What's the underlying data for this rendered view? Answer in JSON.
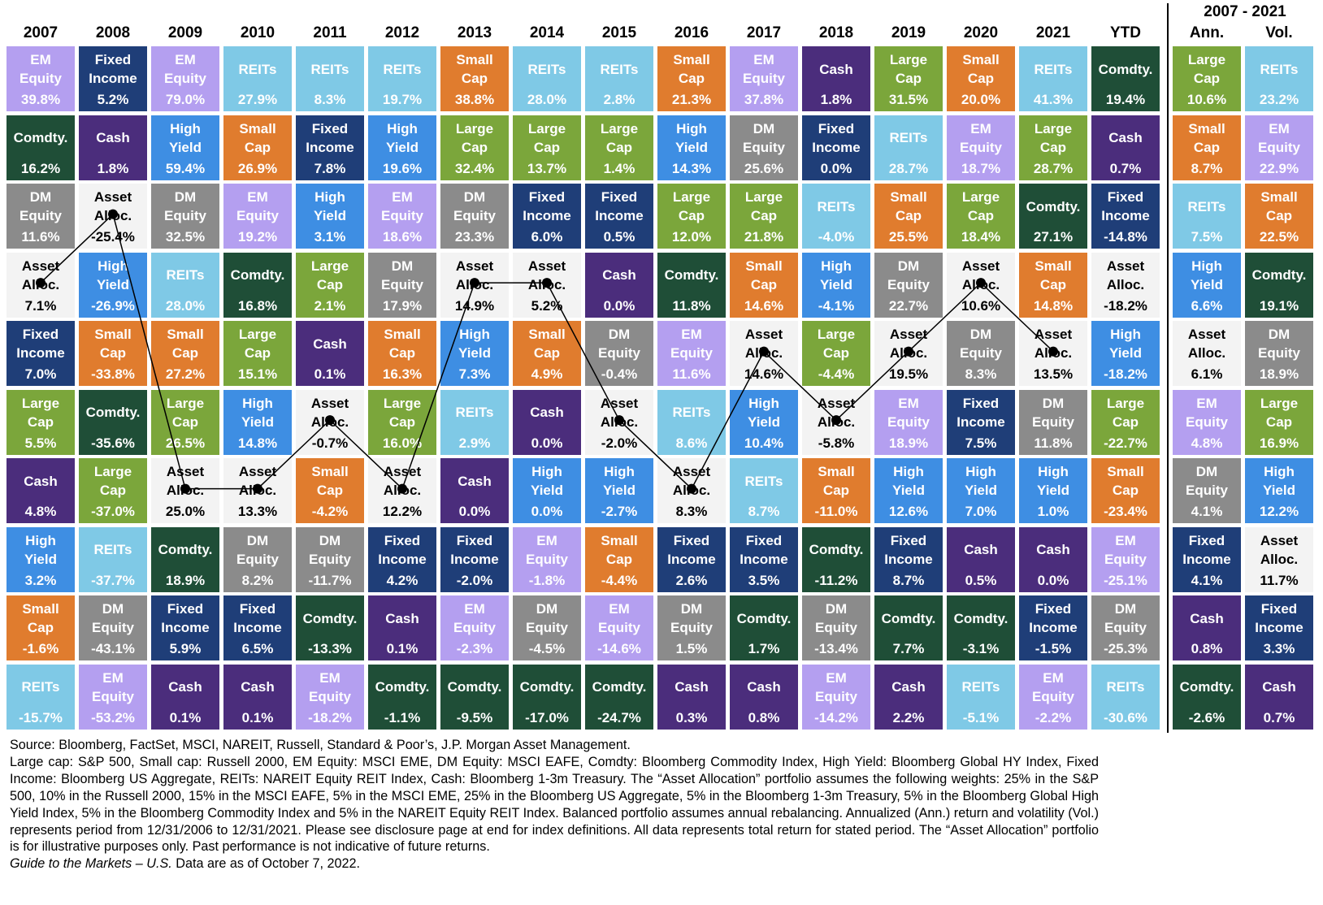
{
  "years": [
    {
      "header": "2007",
      "cells": [
        [
          "EM Equity",
          "39.8%"
        ],
        [
          "Comdty.",
          "16.2%"
        ],
        [
          "DM Equity",
          "11.6%"
        ],
        [
          "Asset Alloc.",
          "7.1%"
        ],
        [
          "Fixed Income",
          "7.0%"
        ],
        [
          "Large Cap",
          "5.5%"
        ],
        [
          "Cash",
          "4.8%"
        ],
        [
          "High Yield",
          "3.2%"
        ],
        [
          "Small Cap",
          "-1.6%"
        ],
        [
          "REITs",
          "-15.7%"
        ]
      ]
    },
    {
      "header": "2008",
      "cells": [
        [
          "Fixed Income",
          "5.2%"
        ],
        [
          "Cash",
          "1.8%"
        ],
        [
          "Asset Alloc.",
          "-25.4%"
        ],
        [
          "High Yield",
          "-26.9%"
        ],
        [
          "Small Cap",
          "-33.8%"
        ],
        [
          "Comdty.",
          "-35.6%"
        ],
        [
          "Large Cap",
          "-37.0%"
        ],
        [
          "REITs",
          "-37.7%"
        ],
        [
          "DM Equity",
          "-43.1%"
        ],
        [
          "EM Equity",
          "-53.2%"
        ]
      ]
    },
    {
      "header": "2009",
      "cells": [
        [
          "EM Equity",
          "79.0%"
        ],
        [
          "High Yield",
          "59.4%"
        ],
        [
          "DM Equity",
          "32.5%"
        ],
        [
          "REITs",
          "28.0%"
        ],
        [
          "Small Cap",
          "27.2%"
        ],
        [
          "Large Cap",
          "26.5%"
        ],
        [
          "Asset Alloc.",
          "25.0%"
        ],
        [
          "Comdty.",
          "18.9%"
        ],
        [
          "Fixed Income",
          "5.9%"
        ],
        [
          "Cash",
          "0.1%"
        ]
      ]
    },
    {
      "header": "2010",
      "cells": [
        [
          "REITs",
          "27.9%"
        ],
        [
          "Small Cap",
          "26.9%"
        ],
        [
          "EM Equity",
          "19.2%"
        ],
        [
          "Comdty.",
          "16.8%"
        ],
        [
          "Large Cap",
          "15.1%"
        ],
        [
          "High Yield",
          "14.8%"
        ],
        [
          "Asset Alloc.",
          "13.3%"
        ],
        [
          "DM Equity",
          "8.2%"
        ],
        [
          "Fixed Income",
          "6.5%"
        ],
        [
          "Cash",
          "0.1%"
        ]
      ]
    },
    {
      "header": "2011",
      "cells": [
        [
          "REITs",
          "8.3%"
        ],
        [
          "Fixed Income",
          "7.8%"
        ],
        [
          "High Yield",
          "3.1%"
        ],
        [
          "Large Cap",
          "2.1%"
        ],
        [
          "Cash",
          "0.1%"
        ],
        [
          "Asset Alloc.",
          "-0.7%"
        ],
        [
          "Small Cap",
          "-4.2%"
        ],
        [
          "DM Equity",
          "-11.7%"
        ],
        [
          "Comdty.",
          "-13.3%"
        ],
        [
          "EM Equity",
          "-18.2%"
        ]
      ]
    },
    {
      "header": "2012",
      "cells": [
        [
          "REITs",
          "19.7%"
        ],
        [
          "High Yield",
          "19.6%"
        ],
        [
          "EM Equity",
          "18.6%"
        ],
        [
          "DM Equity",
          "17.9%"
        ],
        [
          "Small Cap",
          "16.3%"
        ],
        [
          "Large Cap",
          "16.0%"
        ],
        [
          "Asset Alloc.",
          "12.2%"
        ],
        [
          "Fixed Income",
          "4.2%"
        ],
        [
          "Cash",
          "0.1%"
        ],
        [
          "Comdty.",
          "-1.1%"
        ]
      ]
    },
    {
      "header": "2013",
      "cells": [
        [
          "Small Cap",
          "38.8%"
        ],
        [
          "Large Cap",
          "32.4%"
        ],
        [
          "DM Equity",
          "23.3%"
        ],
        [
          "Asset Alloc.",
          "14.9%"
        ],
        [
          "High Yield",
          "7.3%"
        ],
        [
          "REITs",
          "2.9%"
        ],
        [
          "Cash",
          "0.0%"
        ],
        [
          "Fixed Income",
          "-2.0%"
        ],
        [
          "EM Equity",
          "-2.3%"
        ],
        [
          "Comdty.",
          "-9.5%"
        ]
      ]
    },
    {
      "header": "2014",
      "cells": [
        [
          "REITs",
          "28.0%"
        ],
        [
          "Large Cap",
          "13.7%"
        ],
        [
          "Fixed Income",
          "6.0%"
        ],
        [
          "Asset Alloc.",
          "5.2%"
        ],
        [
          "Small Cap",
          "4.9%"
        ],
        [
          "Cash",
          "0.0%"
        ],
        [
          "High Yield",
          "0.0%"
        ],
        [
          "EM Equity",
          "-1.8%"
        ],
        [
          "DM Equity",
          "-4.5%"
        ],
        [
          "Comdty.",
          "-17.0%"
        ]
      ]
    },
    {
      "header": "2015",
      "cells": [
        [
          "REITs",
          "2.8%"
        ],
        [
          "Large Cap",
          "1.4%"
        ],
        [
          "Fixed Income",
          "0.5%"
        ],
        [
          "Cash",
          "0.0%"
        ],
        [
          "DM Equity",
          "-0.4%"
        ],
        [
          "Asset Alloc.",
          "-2.0%"
        ],
        [
          "High Yield",
          "-2.7%"
        ],
        [
          "Small Cap",
          "-4.4%"
        ],
        [
          "EM Equity",
          "-14.6%"
        ],
        [
          "Comdty.",
          "-24.7%"
        ]
      ]
    },
    {
      "header": "2016",
      "cells": [
        [
          "Small Cap",
          "21.3%"
        ],
        [
          "High Yield",
          "14.3%"
        ],
        [
          "Large Cap",
          "12.0%"
        ],
        [
          "Comdty.",
          "11.8%"
        ],
        [
          "EM Equity",
          "11.6%"
        ],
        [
          "REITs",
          "8.6%"
        ],
        [
          "Asset Alloc.",
          "8.3%"
        ],
        [
          "Fixed Income",
          "2.6%"
        ],
        [
          "DM Equity",
          "1.5%"
        ],
        [
          "Cash",
          "0.3%"
        ]
      ]
    },
    {
      "header": "2017",
      "cells": [
        [
          "EM Equity",
          "37.8%"
        ],
        [
          "DM Equity",
          "25.6%"
        ],
        [
          "Large Cap",
          "21.8%"
        ],
        [
          "Small Cap",
          "14.6%"
        ],
        [
          "Asset Alloc.",
          "14.6%"
        ],
        [
          "High Yield",
          "10.4%"
        ],
        [
          "REITs",
          "8.7%"
        ],
        [
          "Fixed Income",
          "3.5%"
        ],
        [
          "Comdty.",
          "1.7%"
        ],
        [
          "Cash",
          "0.8%"
        ]
      ]
    },
    {
      "header": "2018",
      "cells": [
        [
          "Cash",
          "1.8%"
        ],
        [
          "Fixed Income",
          "0.0%"
        ],
        [
          "REITs",
          "-4.0%"
        ],
        [
          "High Yield",
          "-4.1%"
        ],
        [
          "Large Cap",
          "-4.4%"
        ],
        [
          "Asset Alloc.",
          "-5.8%"
        ],
        [
          "Small Cap",
          "-11.0%"
        ],
        [
          "Comdty.",
          "-11.2%"
        ],
        [
          "DM Equity",
          "-13.4%"
        ],
        [
          "EM Equity",
          "-14.2%"
        ]
      ]
    },
    {
      "header": "2019",
      "cells": [
        [
          "Large Cap",
          "31.5%"
        ],
        [
          "REITs",
          "28.7%"
        ],
        [
          "Small Cap",
          "25.5%"
        ],
        [
          "DM Equity",
          "22.7%"
        ],
        [
          "Asset Alloc.",
          "19.5%"
        ],
        [
          "EM Equity",
          "18.9%"
        ],
        [
          "High Yield",
          "12.6%"
        ],
        [
          "Fixed Income",
          "8.7%"
        ],
        [
          "Comdty.",
          "7.7%"
        ],
        [
          "Cash",
          "2.2%"
        ]
      ]
    },
    {
      "header": "2020",
      "cells": [
        [
          "Small Cap",
          "20.0%"
        ],
        [
          "EM Equity",
          "18.7%"
        ],
        [
          "Large Cap",
          "18.4%"
        ],
        [
          "Asset Alloc.",
          "10.6%"
        ],
        [
          "DM Equity",
          "8.3%"
        ],
        [
          "Fixed Income",
          "7.5%"
        ],
        [
          "High Yield",
          "7.0%"
        ],
        [
          "Cash",
          "0.5%"
        ],
        [
          "Comdty.",
          "-3.1%"
        ],
        [
          "REITs",
          "-5.1%"
        ]
      ]
    },
    {
      "header": "2021",
      "cells": [
        [
          "REITs",
          "41.3%"
        ],
        [
          "Large Cap",
          "28.7%"
        ],
        [
          "Comdty.",
          "27.1%"
        ],
        [
          "Small Cap",
          "14.8%"
        ],
        [
          "Asset Alloc.",
          "13.5%"
        ],
        [
          "DM Equity",
          "11.8%"
        ],
        [
          "High Yield",
          "1.0%"
        ],
        [
          "Cash",
          "0.0%"
        ],
        [
          "Fixed Income",
          "-1.5%"
        ],
        [
          "EM Equity",
          "-2.2%"
        ]
      ]
    },
    {
      "header": "YTD",
      "cells": [
        [
          "Comdty.",
          "19.4%"
        ],
        [
          "Cash",
          "0.7%"
        ],
        [
          "Fixed Income",
          "-14.8%"
        ],
        [
          "Asset Alloc.",
          "-18.2%"
        ],
        [
          "High Yield",
          "-18.2%"
        ],
        [
          "Large Cap",
          "-22.7%"
        ],
        [
          "Small Cap",
          "-23.4%"
        ],
        [
          "EM Equity",
          "-25.1%"
        ],
        [
          "DM Equity",
          "-25.3%"
        ],
        [
          "REITs",
          "-30.6%"
        ]
      ]
    }
  ],
  "period": {
    "title": "2007 - 2021",
    "columns": [
      {
        "header": "Ann.",
        "cells": [
          [
            "Large Cap",
            "10.6%"
          ],
          [
            "Small Cap",
            "8.7%"
          ],
          [
            "REITs",
            "7.5%"
          ],
          [
            "High Yield",
            "6.6%"
          ],
          [
            "Asset Alloc.",
            "6.1%"
          ],
          [
            "EM Equity",
            "4.8%"
          ],
          [
            "DM Equity",
            "4.1%"
          ],
          [
            "Fixed Income",
            "4.1%"
          ],
          [
            "Cash",
            "0.8%"
          ],
          [
            "Comdty.",
            "-2.6%"
          ]
        ]
      },
      {
        "header": "Vol.",
        "cells": [
          [
            "REITs",
            "23.2%"
          ],
          [
            "EM Equity",
            "22.9%"
          ],
          [
            "Small Cap",
            "22.5%"
          ],
          [
            "Comdty.",
            "19.1%"
          ],
          [
            "DM Equity",
            "18.9%"
          ],
          [
            "Large Cap",
            "16.9%"
          ],
          [
            "High Yield",
            "12.2%"
          ],
          [
            "Asset Alloc.",
            "11.7%"
          ],
          [
            "Fixed Income",
            "3.3%"
          ],
          [
            "Cash",
            "0.7%"
          ]
        ]
      }
    ]
  },
  "colors": {
    "EM Equity": {
      "bg": "#b49ff0",
      "fg": "#ffffff"
    },
    "Fixed Income": {
      "bg": "#1f3e78",
      "fg": "#ffffff"
    },
    "REITs": {
      "bg": "#7fc9e6",
      "fg": "#ffffff"
    },
    "Small Cap": {
      "bg": "#e07c2e",
      "fg": "#ffffff"
    },
    "Cash": {
      "bg": "#4b2d7c",
      "fg": "#ffffff"
    },
    "Large Cap": {
      "bg": "#7ba63b",
      "fg": "#ffffff"
    },
    "Comdty.": {
      "bg": "#1f4e37",
      "fg": "#ffffff"
    },
    "High Yield": {
      "bg": "#3e8ee3",
      "fg": "#ffffff"
    },
    "DM Equity": {
      "bg": "#8b8b8b",
      "fg": "#ffffff"
    },
    "Asset Alloc.": {
      "bg": "#f3f3f3",
      "fg": "#000000"
    }
  },
  "notes": {
    "source": "Source: Bloomberg, FactSet, MSCI, NAREIT, Russell, Standard & Poor’s, J.P. Morgan Asset Management.",
    "definitions": "Large cap: S&P 500, Small cap: Russell 2000, EM Equity: MSCI EME, DM Equity: MSCI EAFE, Comdty: Bloomberg Commodity Index, High Yield: Bloomberg Global HY Index, Fixed Income: Bloomberg US Aggregate, REITs: NAREIT Equity REIT Index, Cash: Bloomberg 1-3m Treasury. The “Asset Allocation” portfolio assumes the following weights: 25% in the S&P 500, 10% in the Russell 2000, 15% in the MSCI EAFE, 5% in the MSCI EME, 25% in the Bloomberg US Aggregate, 5% in the Bloomberg 1-3m Treasury, 5% in the Bloomberg Global High Yield Index, 5% in the Bloomberg Commodity Index and 5% in the NAREIT Equity REIT Index. Balanced portfolio assumes annual rebalancing. Annualized (Ann.) return and volatility (Vol.) represents period from 12/31/2006 to 12/31/2021. Please see disclosure page at end for index definitions. All data represents total return for stated period. The “Asset Allocation” portfolio is for illustrative purposes only. Past performance is not indicative of future returns.",
    "guide": "Guide to the Markets – U.S.",
    "as_of": "Data are as of October 7, 2022."
  }
}
